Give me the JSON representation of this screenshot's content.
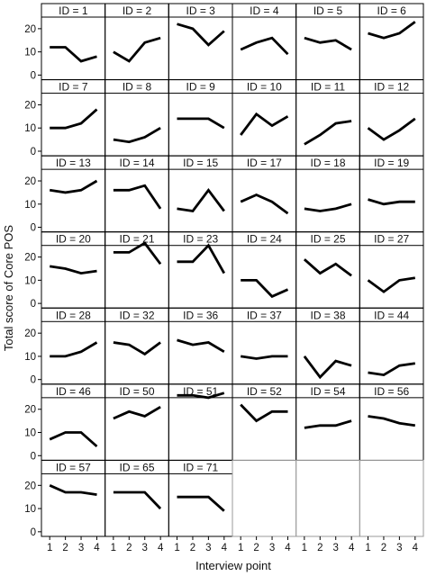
{
  "chart_data": {
    "type": "line",
    "xlabel": "Interview point",
    "ylabel": "Total score of Core POS",
    "x": [
      1,
      2,
      3,
      4
    ],
    "xticks": [
      "1",
      "2",
      "3",
      "4"
    ],
    "yticks": [
      "0",
      "10",
      "20"
    ],
    "ylim": [
      -2,
      25
    ],
    "grid": false,
    "layout_rows": 7,
    "layout_cols": 6,
    "panels": [
      {
        "label": "ID = 1",
        "values": [
          12,
          12,
          6,
          8
        ]
      },
      {
        "label": "ID = 2",
        "values": [
          10,
          6,
          14,
          16
        ]
      },
      {
        "label": "ID = 3",
        "values": [
          22,
          20,
          13,
          19
        ]
      },
      {
        "label": "ID = 4",
        "values": [
          11,
          14,
          16,
          9
        ]
      },
      {
        "label": "ID = 5",
        "values": [
          16,
          14,
          15,
          11
        ]
      },
      {
        "label": "ID = 6",
        "values": [
          18,
          16,
          18,
          23
        ]
      },
      {
        "label": "ID = 7",
        "values": [
          10,
          10,
          12,
          18
        ]
      },
      {
        "label": "ID = 8",
        "values": [
          5,
          4,
          6,
          10
        ]
      },
      {
        "label": "ID = 9",
        "values": [
          14,
          14,
          14,
          10
        ]
      },
      {
        "label": "ID = 10",
        "values": [
          7,
          16,
          11,
          15
        ]
      },
      {
        "label": "ID = 11",
        "values": [
          3,
          7,
          12,
          13
        ]
      },
      {
        "label": "ID = 12",
        "values": [
          10,
          5,
          9,
          14
        ]
      },
      {
        "label": "ID = 13",
        "values": [
          16,
          15,
          16,
          20
        ]
      },
      {
        "label": "ID = 14",
        "values": [
          16,
          16,
          18,
          8
        ]
      },
      {
        "label": "ID = 15",
        "values": [
          8,
          7,
          16,
          7
        ]
      },
      {
        "label": "ID = 17",
        "values": [
          11,
          14,
          11,
          6
        ]
      },
      {
        "label": "ID = 18",
        "values": [
          8,
          7,
          8,
          10
        ]
      },
      {
        "label": "ID = 19",
        "values": [
          12,
          10,
          11,
          11
        ]
      },
      {
        "label": "ID = 20",
        "values": [
          16,
          15,
          13,
          14
        ]
      },
      {
        "label": "ID = 21",
        "values": [
          22,
          22,
          26,
          17
        ]
      },
      {
        "label": "ID = 23",
        "values": [
          18,
          18,
          25,
          13
        ]
      },
      {
        "label": "ID = 24",
        "values": [
          10,
          10,
          3,
          6
        ]
      },
      {
        "label": "ID = 25",
        "values": [
          19,
          13,
          17,
          12
        ]
      },
      {
        "label": "ID = 27",
        "values": [
          10,
          5,
          10,
          11
        ]
      },
      {
        "label": "ID = 28",
        "values": [
          10,
          10,
          12,
          16
        ]
      },
      {
        "label": "ID = 32",
        "values": [
          16,
          15,
          11,
          16
        ]
      },
      {
        "label": "ID = 36",
        "values": [
          17,
          15,
          16,
          12
        ]
      },
      {
        "label": "ID = 37",
        "values": [
          10,
          9,
          10,
          10
        ]
      },
      {
        "label": "ID = 38",
        "values": [
          10,
          1,
          8,
          6
        ]
      },
      {
        "label": "ID = 44",
        "values": [
          3,
          2,
          6,
          7
        ]
      },
      {
        "label": "ID = 46",
        "values": [
          7,
          10,
          10,
          4
        ]
      },
      {
        "label": "ID = 50",
        "values": [
          16,
          19,
          17,
          21
        ]
      },
      {
        "label": "ID = 51",
        "values": [
          26,
          26,
          25,
          27
        ]
      },
      {
        "label": "ID = 52",
        "values": [
          22,
          15,
          19,
          19
        ]
      },
      {
        "label": "ID = 54",
        "values": [
          12,
          13,
          13,
          15
        ]
      },
      {
        "label": "ID = 56",
        "values": [
          17,
          16,
          14,
          13
        ]
      },
      {
        "label": "ID = 57",
        "values": [
          20,
          17,
          17,
          16
        ]
      },
      {
        "label": "ID = 65",
        "values": [
          17,
          17,
          17,
          10
        ]
      },
      {
        "label": "ID = 71",
        "values": [
          15,
          15,
          15,
          9
        ]
      }
    ]
  }
}
